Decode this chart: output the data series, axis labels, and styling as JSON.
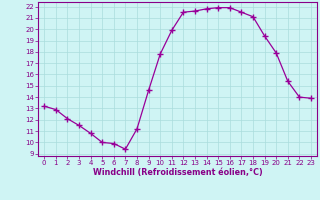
{
  "x": [
    0,
    1,
    2,
    3,
    4,
    5,
    6,
    7,
    8,
    9,
    10,
    11,
    12,
    13,
    14,
    15,
    16,
    17,
    18,
    19,
    20,
    21,
    22,
    23
  ],
  "y": [
    13.2,
    12.9,
    12.1,
    11.5,
    10.8,
    10.0,
    9.9,
    9.4,
    11.2,
    14.6,
    17.8,
    19.9,
    21.5,
    21.6,
    21.8,
    21.9,
    21.9,
    21.5,
    21.1,
    19.4,
    17.9,
    15.4,
    14.0,
    13.9
  ],
  "line_color": "#990099",
  "marker": "+",
  "marker_size": 4,
  "bg_color": "#cff4f4",
  "grid_color": "#aadddd",
  "xlabel": "Windchill (Refroidissement éolien,°C)",
  "xlim_min": -0.5,
  "xlim_max": 23.5,
  "ylim_min": 8.8,
  "ylim_max": 22.4,
  "yticks": [
    9,
    10,
    11,
    12,
    13,
    14,
    15,
    16,
    17,
    18,
    19,
    20,
    21,
    22
  ],
  "xticks": [
    0,
    1,
    2,
    3,
    4,
    5,
    6,
    7,
    8,
    9,
    10,
    11,
    12,
    13,
    14,
    15,
    16,
    17,
    18,
    19,
    20,
    21,
    22,
    23
  ],
  "tick_color": "#880088",
  "label_color": "#880088",
  "label_fontsize": 5.8,
  "tick_fontsize": 5.0,
  "spine_color": "#880088"
}
